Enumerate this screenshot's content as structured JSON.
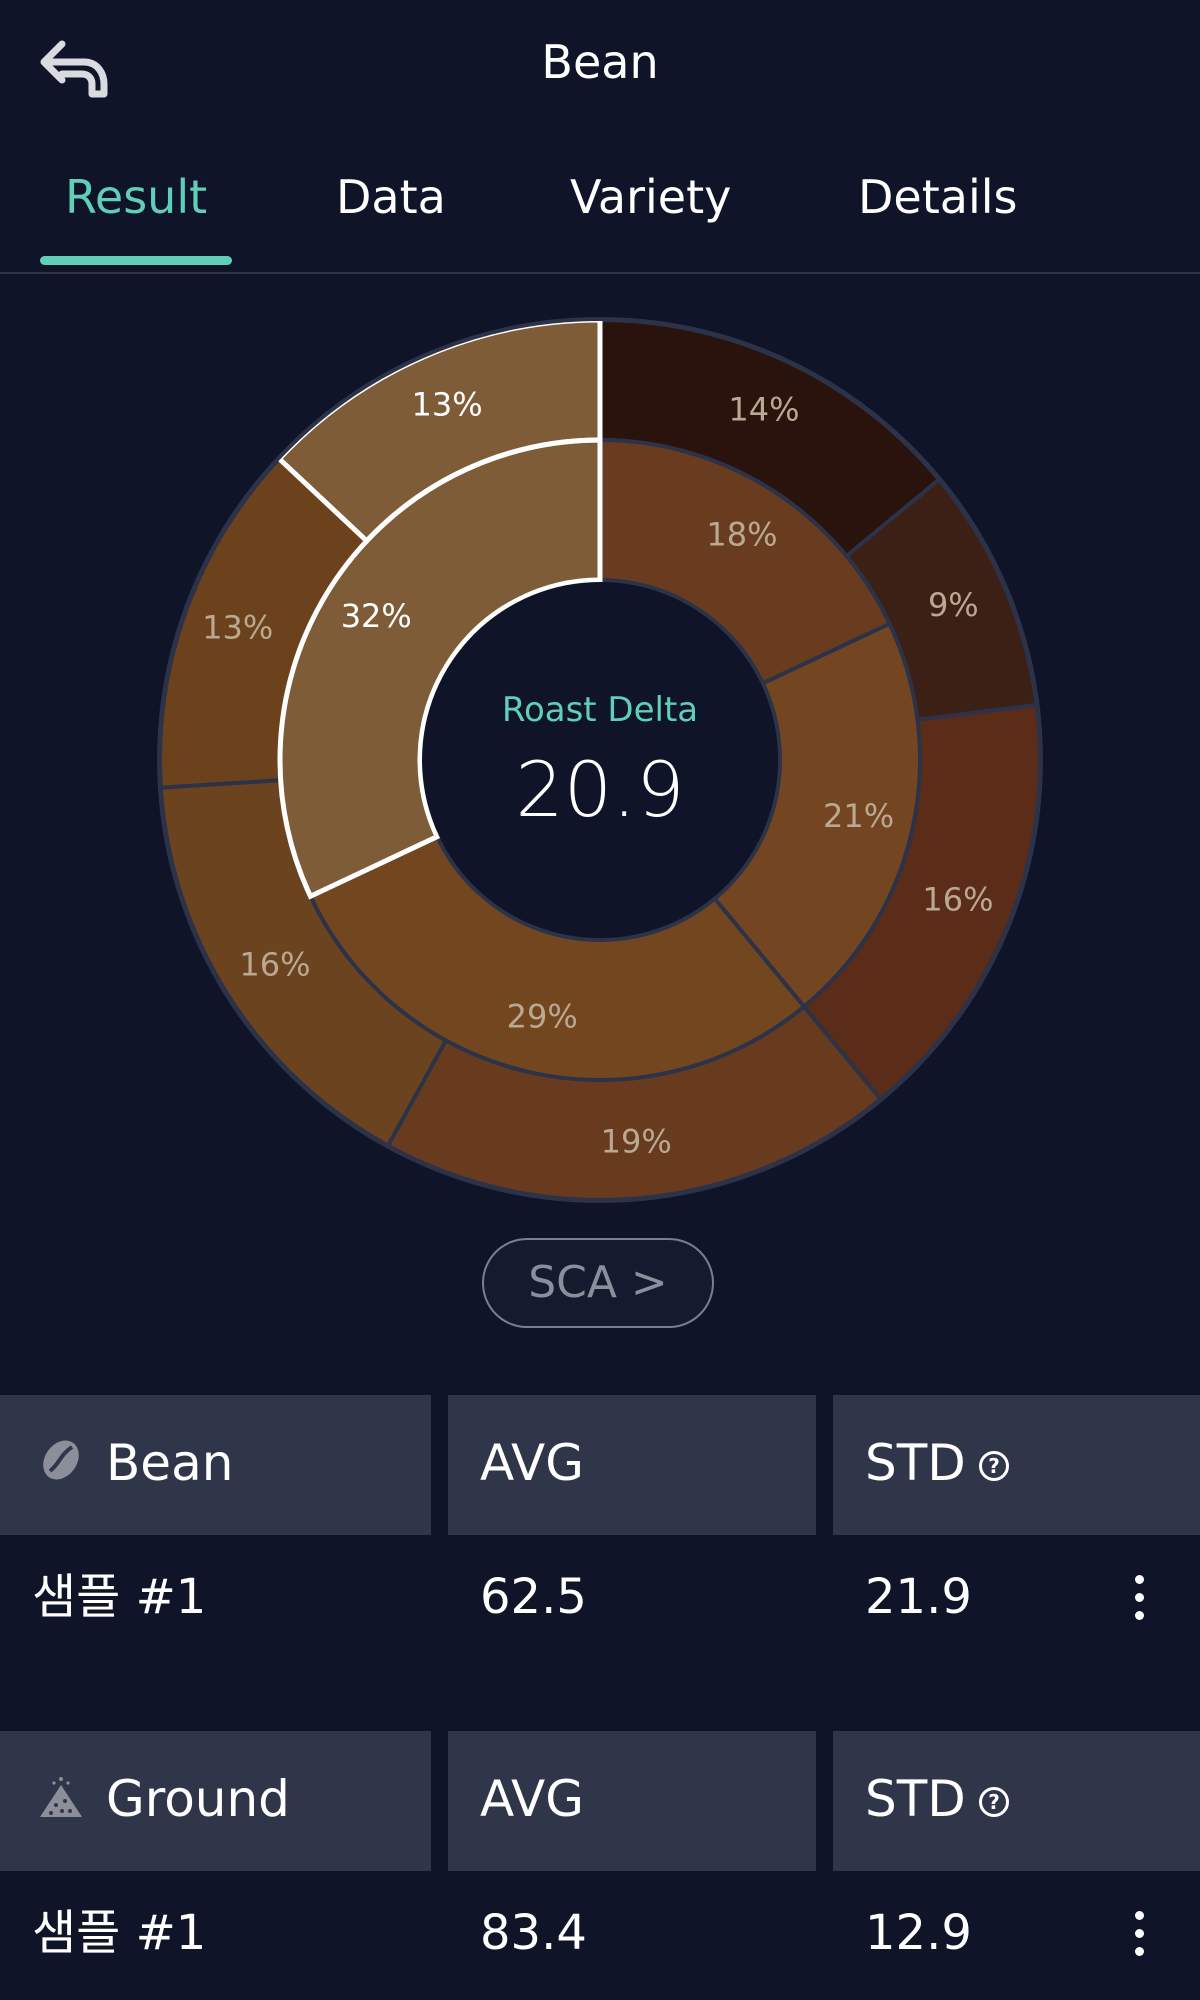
{
  "header": {
    "title": "Bean"
  },
  "tabs": [
    {
      "label": "Result",
      "active": true
    },
    {
      "label": "Data",
      "active": false
    },
    {
      "label": "Variety",
      "active": false
    },
    {
      "label": "Details",
      "active": false
    }
  ],
  "center": {
    "label": "Roast Delta",
    "value": "20.9"
  },
  "sca_button": "SCA >",
  "chart_data": {
    "type": "pie",
    "rings": [
      {
        "name": "outer",
        "values": [
          14,
          9,
          16,
          19,
          16,
          13,
          13
        ],
        "labels": [
          "14%",
          "9%",
          "16%",
          "19%",
          "16%",
          "13%",
          "13%"
        ],
        "colors": [
          "#2a130d",
          "#3c2016",
          "#5b2c17",
          "#683b1e",
          "#6b431f",
          "#6c421c",
          "#7f5c38"
        ]
      },
      {
        "name": "inner",
        "values": [
          18,
          21,
          29,
          32
        ],
        "labels": [
          "18%",
          "21%",
          "29%",
          "32%"
        ],
        "colors": [
          "#693c20",
          "#734621",
          "#724720",
          "#7f5c38"
        ]
      }
    ],
    "highlight": "13%/32% segment outlined in white"
  },
  "tables": [
    {
      "header": {
        "name": "Bean",
        "icon": "coffee-bean-icon",
        "avg": "AVG",
        "std": "STD"
      },
      "row": {
        "name": "샘플 #1",
        "avg": "62.5",
        "std": "21.9"
      }
    },
    {
      "header": {
        "name": "Ground",
        "icon": "ground-coffee-icon",
        "avg": "AVG",
        "std": "STD"
      },
      "row": {
        "name": "샘플 #1",
        "avg": "83.4",
        "std": "12.9"
      }
    }
  ],
  "colors": {
    "accent": "#5fcfb7",
    "background": "#0f1428",
    "header_cell": "#303649"
  }
}
